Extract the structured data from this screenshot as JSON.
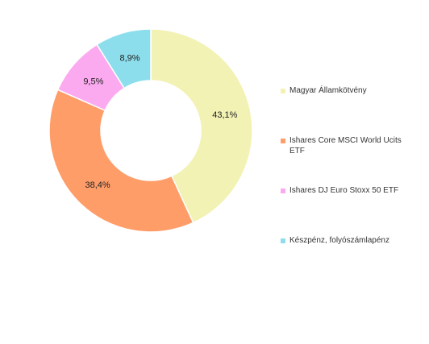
{
  "chart_data": {
    "type": "pie",
    "donut": true,
    "title": "",
    "slices": [
      {
        "label": "Magyar Államkötvény",
        "value": 43.1,
        "value_label": "43,1%",
        "color": "#f2f2b4"
      },
      {
        "label": "Ishares Core MSCI World Ucits ETF",
        "value": 38.4,
        "value_label": "38,4%",
        "color": "#ff9d69"
      },
      {
        "label": "Ishares DJ Euro Stoxx 50 ETF",
        "value": 9.5,
        "value_label": "9,5%",
        "color": "#fbaaf0"
      },
      {
        "label": "Készpénz, folyószámlapénz",
        "value": 8.9,
        "value_label": "8,9%",
        "color": "#8ddeec"
      }
    ],
    "legend_position": "right"
  }
}
